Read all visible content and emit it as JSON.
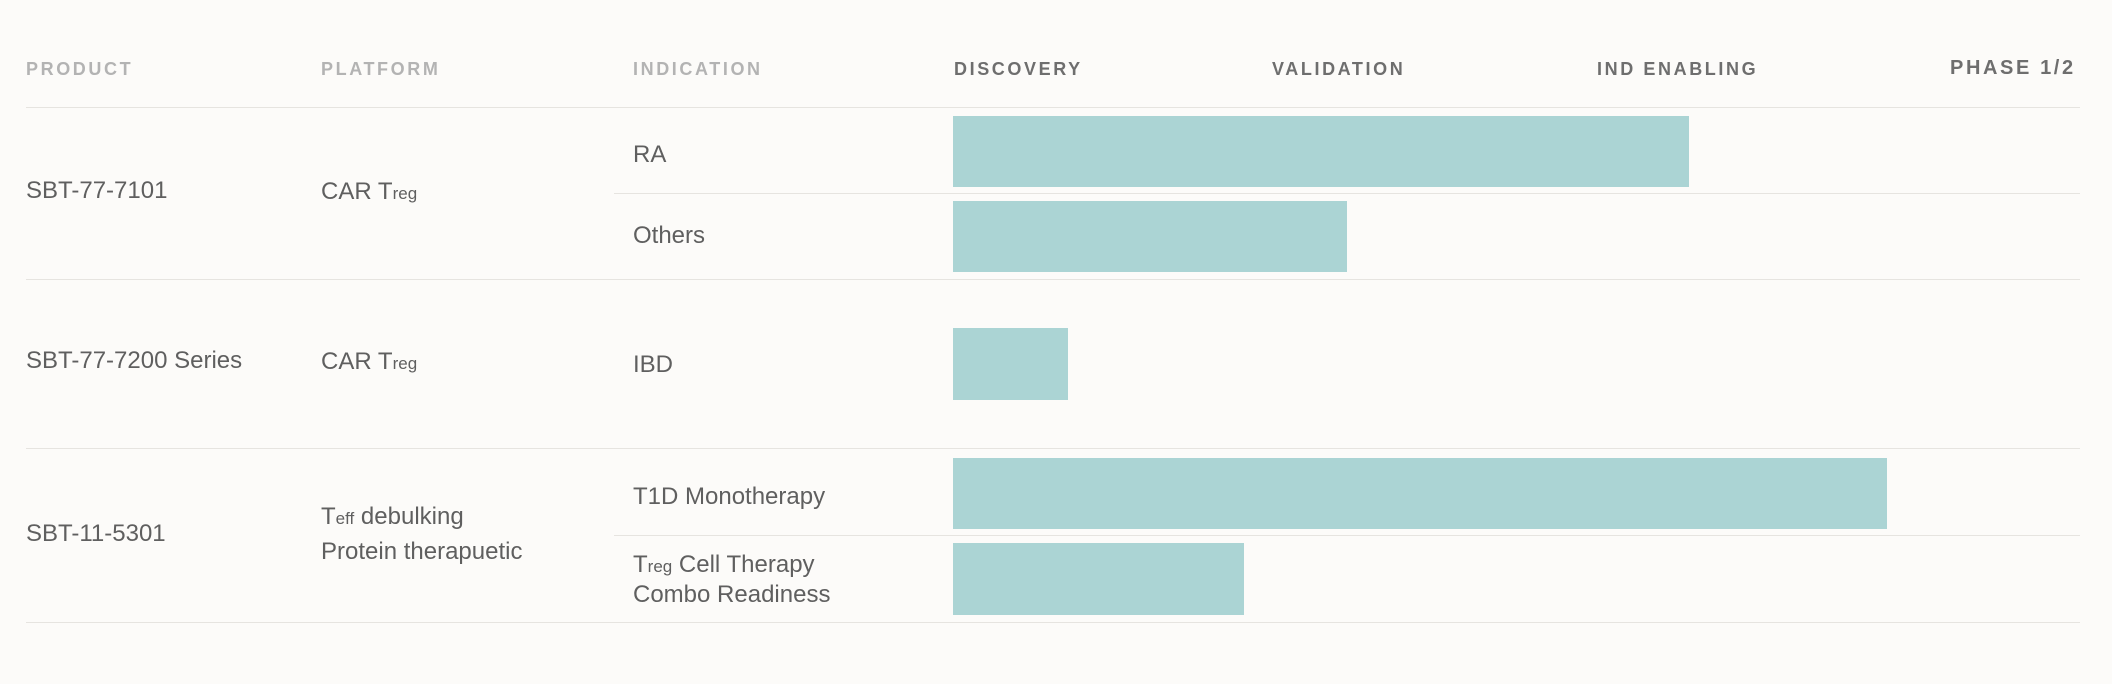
{
  "headers": {
    "product": "PRODUCT",
    "platform": "PLATFORM",
    "indication": "INDICATION",
    "discovery": "DISCOVERY",
    "validation": "VALIDATION",
    "ind_enabling": "IND ENABLING",
    "phase12": "PHASE 1/2"
  },
  "rows": [
    {
      "product": "SBT-77-7101",
      "platform": {
        "main": "CAR T",
        "sub": "reg"
      },
      "indications": [
        "RA",
        "Others"
      ]
    },
    {
      "product": "SBT-77-7200 Series",
      "platform": {
        "main": "CAR T",
        "sub": "reg"
      },
      "indications": [
        "IBD"
      ]
    },
    {
      "product": "SBT-11-5301",
      "platform": {
        "main": "T",
        "sub": "eff",
        "rest": " debulking",
        "line2": "Protein therapuetic"
      },
      "indications": [
        "T1D Monotherapy",
        "Treg Cell Therapy Combo Readiness"
      ],
      "treg_indication": {
        "main": "T",
        "sub": "reg",
        "rest": " Cell Therapy",
        "line2": "Combo Readiness"
      }
    }
  ],
  "chart_data": {
    "type": "bar",
    "orientation": "horizontal",
    "title": "",
    "stages": [
      "DISCOVERY",
      "VALIDATION",
      "IND ENABLING",
      "PHASE 1/2"
    ],
    "xlim": [
      0,
      4
    ],
    "categories": [
      "RA",
      "Others",
      "IBD",
      "T1D Monotherapy",
      "Treg Cell Therapy Combo Readiness"
    ],
    "values": [
      2.3,
      1.23,
      0.36,
      2.92,
      0.91
    ],
    "color": "#abd4d4"
  }
}
